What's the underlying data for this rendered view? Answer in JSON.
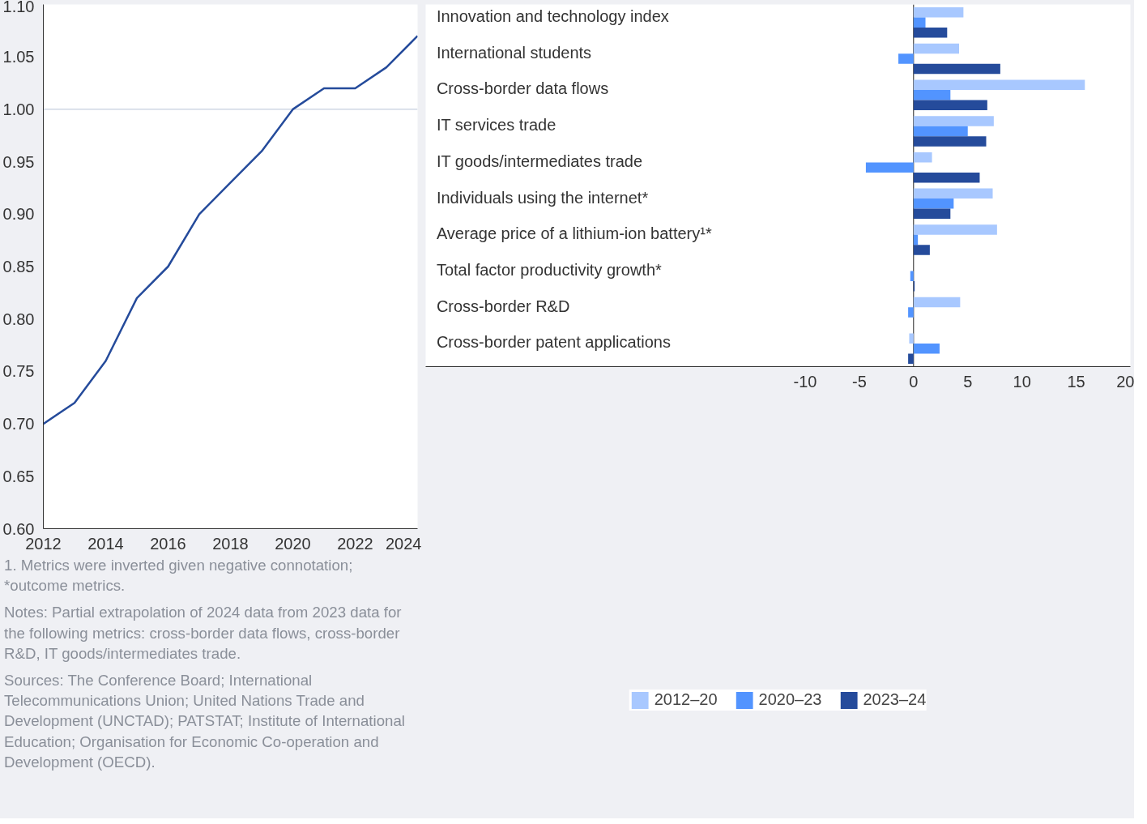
{
  "chart_data": [
    {
      "type": "line",
      "x": [
        2012,
        2013,
        2014,
        2015,
        2016,
        2017,
        2018,
        2019,
        2020,
        2021,
        2022,
        2023,
        2024
      ],
      "series": [
        {
          "color": "#254b9b",
          "values": [
            0.7,
            0.72,
            0.76,
            0.82,
            0.85,
            0.9,
            0.93,
            0.96,
            1.0,
            1.02,
            1.02,
            1.04,
            1.07
          ]
        }
      ],
      "xlim": [
        2012,
        2024
      ],
      "xticks": [
        2012,
        2014,
        2016,
        2018,
        2020,
        2022,
        2024
      ],
      "ylim": [
        0.6,
        1.1
      ],
      "yticks": [
        {
          "value": 0.6,
          "label": "0.60"
        },
        {
          "value": 0.65,
          "label": "0.65"
        },
        {
          "value": 0.7,
          "label": "0.70"
        },
        {
          "value": 0.75,
          "label": "0.75"
        },
        {
          "value": 0.8,
          "label": "0.80"
        },
        {
          "value": 0.85,
          "label": "0.85"
        },
        {
          "value": 0.9,
          "label": "0.90"
        },
        {
          "value": 0.95,
          "label": "0.95"
        },
        {
          "value": 1.0,
          "label": "1.00"
        },
        {
          "value": 1.05,
          "label": "1.05"
        },
        {
          "value": 1.1,
          "label": "1.10"
        }
      ],
      "ref_lines": [
        {
          "axis": "y",
          "value": 1.0,
          "color": "#b8c2d6"
        }
      ],
      "grid": false,
      "legend": false,
      "marker": "none",
      "line_style": "solid",
      "annotations": [
        "1. Metrics were inverted given negative connotation; *outcome metrics.",
        "Notes: Partial extrapolation of 2024 data from 2023 data for the following metrics: cross-border data flows, cross-border R&D, IT goods/intermediates trade.",
        "Sources: The Conference Board; International Telecommunications Union; United Nations Trade and Development (UNCTAD); PATSTAT; Institute of International Education; Organisation for Economic Co-operation and Development (OECD)."
      ]
    },
    {
      "type": "bar",
      "orientation": "horizontal",
      "categories": [
        "Innovation and technology index",
        "International students",
        "Cross-border data flows",
        "IT services trade",
        "IT goods/intermediates trade",
        "Individuals using the internet*",
        "Average price of a lithium-ion battery¹*",
        "Total factor productivity growth*",
        "Cross-border R&D",
        "Cross-border patent applications"
      ],
      "series": [
        {
          "name": "2012–20",
          "color": "#a8c8ff",
          "values": [
            4.6,
            4.2,
            15.8,
            7.4,
            1.7,
            7.3,
            7.7,
            0,
            4.3,
            -0.4
          ]
        },
        {
          "name": "2020–23",
          "color": "#5294ff",
          "values": [
            1.1,
            -1.4,
            3.4,
            5.0,
            -4.4,
            3.7,
            0.4,
            -0.3,
            -0.5,
            2.4
          ]
        },
        {
          "name": "2023–24",
          "color": "#254b9b",
          "values": [
            3.1,
            8.0,
            6.8,
            6.7,
            6.1,
            3.4,
            1.5,
            0.1,
            0,
            -0.5
          ]
        }
      ],
      "xlim": [
        -45,
        20
      ],
      "xticks": [
        -10,
        -5,
        0,
        5,
        10,
        15,
        20
      ],
      "ref_lines": [
        {
          "axis": "x",
          "value": 0,
          "color": "#222222"
        }
      ],
      "grid": false,
      "legend": "bottom"
    }
  ]
}
